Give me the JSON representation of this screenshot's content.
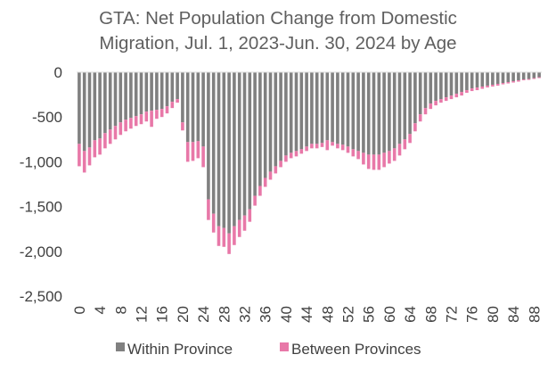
{
  "chart_data": {
    "type": "bar",
    "stacked": true,
    "title": "GTA: Net Population Change from Domestic Migration, Jul. 1, 2023-Jun. 30, 2024 by Age",
    "title_lines": [
      "GTA: Net Population Change from Domestic",
      "Migration, Jul. 1, 2023-Jun. 30, 2024 by Age"
    ],
    "xlabel": "",
    "ylabel": "",
    "ylim": [
      -2500,
      0
    ],
    "yticks": [
      0,
      -500,
      -1000,
      -1500,
      -2000,
      -2500
    ],
    "ytick_labels": [
      "0",
      "-500",
      "-1,000",
      "-1,500",
      "-2,000",
      "-2,500"
    ],
    "xtick_labels": [
      "0",
      "4",
      "8",
      "12",
      "16",
      "20",
      "24",
      "28",
      "32",
      "36",
      "40",
      "44",
      "48",
      "52",
      "56",
      "60",
      "64",
      "68",
      "72",
      "76",
      "80",
      "84",
      "88"
    ],
    "grid": false,
    "legend": "bottom",
    "categories": [
      0,
      1,
      2,
      3,
      4,
      5,
      6,
      7,
      8,
      9,
      10,
      11,
      12,
      13,
      14,
      15,
      16,
      17,
      18,
      19,
      20,
      21,
      22,
      23,
      24,
      25,
      26,
      27,
      28,
      29,
      30,
      31,
      32,
      33,
      34,
      35,
      36,
      37,
      38,
      39,
      40,
      41,
      42,
      43,
      44,
      45,
      46,
      47,
      48,
      49,
      50,
      51,
      52,
      53,
      54,
      55,
      56,
      57,
      58,
      59,
      60,
      61,
      62,
      63,
      64,
      65,
      66,
      67,
      68,
      69,
      70,
      71,
      72,
      73,
      74,
      75,
      76,
      77,
      78,
      79,
      80,
      81,
      82,
      83,
      84,
      85,
      86,
      87,
      88,
      89
    ],
    "series": [
      {
        "name": "Within Province",
        "color": "#808080",
        "values": [
          -800,
          -880,
          -840,
          -760,
          -740,
          -680,
          -640,
          -600,
          -560,
          -530,
          -510,
          -490,
          -470,
          -440,
          -430,
          -420,
          -410,
          -380,
          -330,
          -300,
          -560,
          -780,
          -780,
          -770,
          -830,
          -1420,
          -1580,
          -1720,
          -1740,
          -1800,
          -1720,
          -1650,
          -1600,
          -1530,
          -1380,
          -1270,
          -1180,
          -1110,
          -1050,
          -990,
          -930,
          -900,
          -880,
          -860,
          -830,
          -800,
          -800,
          -790,
          -760,
          -780,
          -800,
          -810,
          -830,
          -860,
          -880,
          -900,
          -920,
          -920,
          -920,
          -900,
          -880,
          -850,
          -800,
          -750,
          -690,
          -570,
          -470,
          -400,
          -350,
          -320,
          -300,
          -280,
          -260,
          -240,
          -220,
          -200,
          -180,
          -170,
          -160,
          -150,
          -140,
          -130,
          -120,
          -110,
          -100,
          -90,
          -80,
          -75,
          -65,
          -55
        ]
      },
      {
        "name": "Between Provinces",
        "color": "#e878a8",
        "values": [
          -250,
          -240,
          -200,
          -190,
          -180,
          -170,
          -160,
          -150,
          -140,
          -130,
          -120,
          -110,
          -110,
          -110,
          -180,
          -100,
          -90,
          -80,
          -70,
          -40,
          -90,
          -220,
          -210,
          -190,
          -230,
          -230,
          -210,
          -220,
          -210,
          -230,
          -210,
          -190,
          -170,
          -140,
          -110,
          -110,
          -100,
          -90,
          -80,
          -70,
          -70,
          -60,
          -60,
          -50,
          -50,
          -50,
          -50,
          -45,
          -110,
          -40,
          -50,
          -60,
          -70,
          -80,
          -90,
          -130,
          -160,
          -170,
          -170,
          -160,
          -140,
          -140,
          -130,
          -110,
          -100,
          -90,
          -80,
          -70,
          -60,
          -50,
          -40,
          -40,
          -40,
          -40,
          -40,
          -30,
          -30,
          -30,
          -25,
          -20,
          -20,
          -20,
          -15,
          -15,
          -15,
          -15,
          -10,
          -10,
          -10,
          -10
        ]
      }
    ]
  }
}
